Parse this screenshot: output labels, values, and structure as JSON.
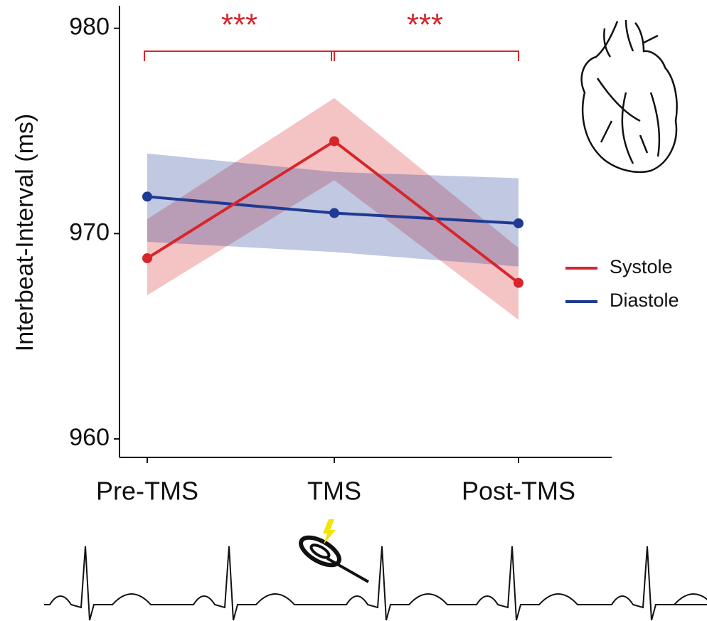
{
  "chart_data": {
    "type": "line",
    "ylabel": "Interbeat-Interval (ms)",
    "categories": [
      "Pre-TMS",
      "TMS",
      "Post-TMS"
    ],
    "ylim": [
      959.1,
      981.1
    ],
    "yticks": [
      960,
      970,
      980
    ],
    "legend": "right",
    "series": [
      {
        "name": "Systole",
        "color": "#d7262b",
        "values": [
          968.8,
          974.5,
          967.6
        ],
        "lower": [
          967.0,
          972.6,
          965.8
        ],
        "upper": [
          970.7,
          976.6,
          969.3
        ]
      },
      {
        "name": "Diastole",
        "color": "#1f3a93",
        "values": [
          971.8,
          971.0,
          970.5
        ],
        "lower": [
          969.6,
          969.1,
          968.4
        ],
        "upper": [
          973.9,
          973.0,
          972.7
        ]
      }
    ],
    "annotations": [
      {
        "label": "***",
        "from": 0,
        "to": 1
      },
      {
        "label": "***",
        "from": 1,
        "to": 2
      }
    ]
  }
}
